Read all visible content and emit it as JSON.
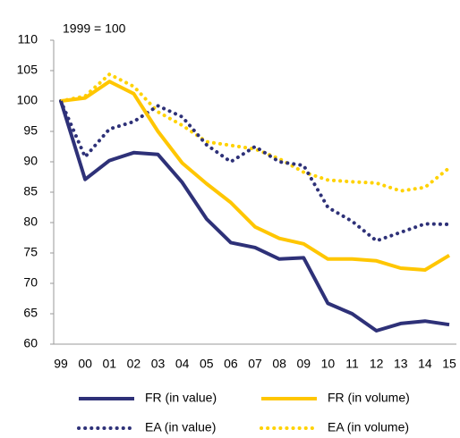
{
  "chart_data": {
    "type": "line",
    "annotation": "1999 = 100",
    "categories": [
      "99",
      "00",
      "01",
      "02",
      "03",
      "04",
      "05",
      "06",
      "07",
      "08",
      "09",
      "10",
      "11",
      "12",
      "13",
      "14",
      "15"
    ],
    "ylim": [
      60,
      110
    ],
    "yticks": [
      60,
      65,
      70,
      75,
      80,
      85,
      90,
      95,
      100,
      105,
      110
    ],
    "series": [
      {
        "name": "FR (in value)",
        "color": "#2e3178",
        "line_style": "solid",
        "values": [
          100,
          87.1,
          90.2,
          91.5,
          91.2,
          86.6,
          80.6,
          76.7,
          75.9,
          74.0,
          74.2,
          66.7,
          65.0,
          62.2,
          63.4,
          63.8,
          63.2
        ]
      },
      {
        "name": "FR (in volume)",
        "color": "#ffc600",
        "line_style": "solid",
        "values": [
          100,
          100.5,
          103.2,
          101.2,
          95.0,
          89.8,
          86.4,
          83.3,
          79.3,
          77.4,
          76.5,
          74.0,
          74.0,
          73.7,
          72.5,
          72.2,
          74.6
        ]
      },
      {
        "name": "EA (in value)",
        "color": "#2e3178",
        "line_style": "dotted",
        "values": [
          100,
          90.8,
          95.4,
          96.6,
          99.2,
          97.4,
          92.8,
          90.0,
          92.5,
          90.0,
          89.4,
          82.5,
          80.2,
          77.0,
          78.4,
          79.8,
          79.7
        ]
      },
      {
        "name": "EA (in volume)",
        "color": "#ffd200",
        "line_style": "dotted",
        "values": [
          100,
          100.8,
          104.4,
          102.4,
          98.2,
          96.0,
          93.3,
          92.7,
          92.1,
          90.5,
          88.3,
          87.0,
          86.7,
          86.5,
          85.2,
          85.8,
          89.0
        ]
      }
    ]
  }
}
